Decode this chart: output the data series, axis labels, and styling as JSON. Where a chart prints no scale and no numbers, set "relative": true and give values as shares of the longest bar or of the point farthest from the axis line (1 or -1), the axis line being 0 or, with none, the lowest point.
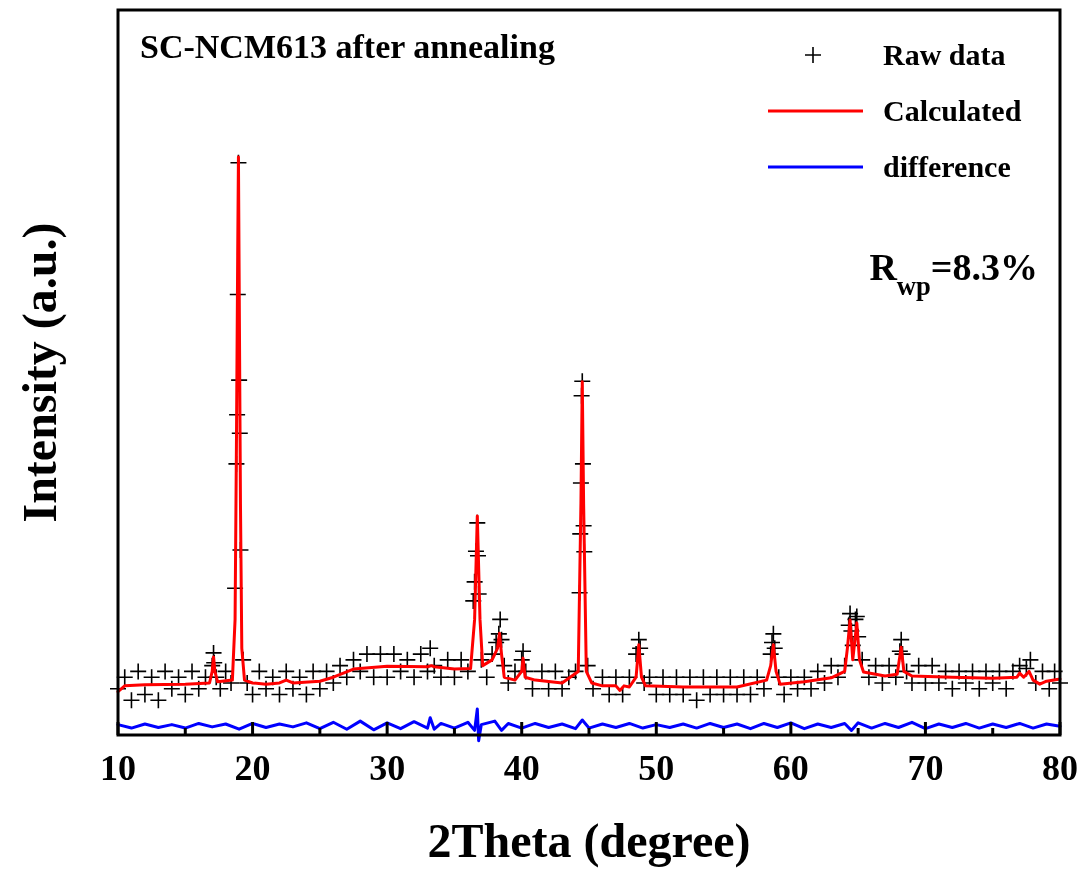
{
  "chart_data": {
    "type": "line",
    "title": "SC-NCM613 after annealing",
    "xlabel": "2Theta (degree)",
    "ylabel": "Intensity (a.u.)",
    "relative": true,
    "xlim": [
      10,
      80
    ],
    "xticks": [
      10,
      {
        "value": 15,
        "label": null
      },
      20,
      {
        "value": 25,
        "label": null
      },
      30,
      {
        "value": 35,
        "label": null
      },
      40,
      {
        "value": 45,
        "label": null
      },
      50,
      {
        "value": 55,
        "label": null
      },
      60,
      {
        "value": 65,
        "label": null
      },
      70,
      {
        "value": 75,
        "label": null
      },
      80
    ],
    "tick_labels": "x",
    "grid": false,
    "legend": "top right",
    "annotations": [
      "R$_{wp}$=8.3%"
    ],
    "series": [
      {
        "name": "Raw data",
        "type": "scatter",
        "marker": "cross",
        "color": "#000000",
        "x": [
          10,
          10.5,
          11,
          11.5,
          12,
          12.5,
          13,
          13.5,
          14,
          14.5,
          15,
          15.5,
          16,
          16.5,
          17.0,
          17.1,
          17.15,
          17.3,
          17.6,
          18.0,
          18.4,
          18.7,
          18.8,
          18.85,
          18.9,
          18.95,
          19.0,
          19.05,
          19.1,
          19.3,
          19.6,
          20,
          20.5,
          21,
          21.5,
          22,
          22.5,
          23,
          23.5,
          24,
          24.5,
          25,
          25.5,
          26,
          26.5,
          27,
          27.5,
          28,
          28.5,
          29,
          29.5,
          30,
          30.5,
          31,
          31.5,
          32,
          32.5,
          33,
          33.2,
          33.5,
          34,
          34.5,
          35,
          35.5,
          36,
          36.4,
          36.5,
          36.6,
          36.7,
          36.75,
          36.8,
          37.0,
          37.4,
          37.8,
          38.1,
          38.3,
          38.4,
          38.5,
          38.7,
          39,
          39.5,
          40.0,
          40.1,
          40.3,
          40.8,
          41.5,
          42,
          42.5,
          43,
          43.5,
          44,
          44.3,
          44.35,
          44.4,
          44.45,
          44.5,
          44.55,
          44.6,
          44.65,
          44.9,
          45.3,
          46,
          46.5,
          47,
          47.5,
          48,
          48.5,
          48.7,
          48.8,
          49.1,
          49.5,
          50,
          50.5,
          51,
          51.5,
          52,
          52.5,
          53,
          53.5,
          54,
          54.5,
          55,
          55.5,
          56,
          56.5,
          57,
          57.5,
          58,
          58.5,
          58.6,
          58.7,
          58.8,
          59.1,
          59.5,
          60,
          60.5,
          61,
          61.5,
          62,
          62.5,
          63,
          63.5,
          64,
          64.3,
          64.4,
          64.5,
          64.6,
          64.8,
          64.9,
          65.0,
          65.3,
          65.8,
          66.3,
          66.8,
          67.3,
          67.8,
          68.1,
          68.2,
          68.3,
          68.6,
          69,
          69.5,
          70,
          70.5,
          71,
          71.5,
          72,
          72.5,
          73,
          73.5,
          74,
          74.5,
          75,
          75.5,
          76,
          76.5,
          77,
          77.5,
          77.8,
          78.2,
          78.7,
          79.2,
          79.6,
          80
        ],
        "values": [
          0.08,
          0.1,
          0.06,
          0.11,
          0.07,
          0.1,
          0.06,
          0.11,
          0.08,
          0.1,
          0.07,
          0.11,
          0.08,
          0.1,
          0.12,
          0.142,
          0.125,
          0.1,
          0.08,
          0.11,
          0.09,
          0.254,
          0.469,
          0.554,
          0.762,
          0.99,
          0.614,
          0.522,
          0.32,
          0.13,
          0.09,
          0.07,
          0.11,
          0.08,
          0.1,
          0.07,
          0.11,
          0.08,
          0.1,
          0.07,
          0.11,
          0.08,
          0.11,
          0.09,
          0.12,
          0.1,
          0.13,
          0.11,
          0.14,
          0.1,
          0.14,
          0.1,
          0.14,
          0.11,
          0.13,
          0.1,
          0.14,
          0.11,
          0.15,
          0.12,
          0.1,
          0.13,
          0.1,
          0.13,
          0.11,
          0.232,
          0.265,
          0.318,
          0.367,
          0.31,
          0.244,
          0.13,
          0.1,
          0.14,
          0.16,
          0.175,
          0.2,
          0.165,
          0.12,
          0.09,
          0.11,
          0.13,
          0.145,
          0.11,
          0.08,
          0.11,
          0.08,
          0.11,
          0.08,
          0.1,
          0.11,
          0.246,
          0.348,
          0.436,
          0.587,
          0.612,
          0.469,
          0.362,
          0.317,
          0.12,
          0.08,
          0.1,
          0.07,
          0.1,
          0.07,
          0.1,
          0.14,
          0.165,
          0.15,
          0.09,
          0.1,
          0.07,
          0.1,
          0.07,
          0.1,
          0.07,
          0.1,
          0.06,
          0.1,
          0.07,
          0.1,
          0.07,
          0.1,
          0.07,
          0.1,
          0.07,
          0.1,
          0.08,
          0.14,
          0.16,
          0.175,
          0.15,
          0.1,
          0.07,
          0.1,
          0.08,
          0.1,
          0.08,
          0.11,
          0.09,
          0.12,
          0.1,
          0.12,
          0.19,
          0.21,
          0.18,
          0.155,
          0.2,
          0.205,
          0.17,
          0.13,
          0.1,
          0.12,
          0.09,
          0.12,
          0.1,
          0.145,
          0.165,
          0.14,
          0.11,
          0.09,
          0.12,
          0.09,
          0.12,
          0.09,
          0.11,
          0.08,
          0.11,
          0.09,
          0.11,
          0.08,
          0.11,
          0.09,
          0.11,
          0.08,
          0.11,
          0.12,
          0.115,
          0.13,
          0.09,
          0.11,
          0.08,
          0.11,
          0.09
        ]
      },
      {
        "name": "Calculated",
        "type": "line",
        "color": "#ff0000",
        "x": [
          10,
          10.5,
          12,
          15,
          16.8,
          17.0,
          17.1,
          17.2,
          17.4,
          18.5,
          18.7,
          18.8,
          18.9,
          18.95,
          19.0,
          19.1,
          19.2,
          19.4,
          20,
          21,
          22,
          22.5,
          23,
          25,
          26,
          27.5,
          30,
          33,
          33.3,
          33.5,
          35,
          36.2,
          36.5,
          36.7,
          36.9,
          37.1,
          37.8,
          38.0,
          38.2,
          38.35,
          38.5,
          38.7,
          39.5,
          40.0,
          40.1,
          40.25,
          41,
          43,
          44.2,
          44.4,
          44.5,
          44.6,
          44.8,
          45.2,
          46,
          47,
          47.3,
          47.6,
          48,
          48.5,
          48.7,
          48.9,
          49.2,
          52,
          56,
          58.2,
          58.5,
          58.7,
          58.9,
          59.2,
          61,
          63,
          64.0,
          64.2,
          64.4,
          64.6,
          64.9,
          65.1,
          65.4,
          67,
          67.9,
          68.2,
          68.4,
          69,
          72,
          75,
          76.8,
          77,
          77.3,
          77.7,
          78,
          78.5,
          79,
          80
        ],
        "values": [
          0.075,
          0.085,
          0.087,
          0.088,
          0.09,
          0.11,
          0.135,
          0.11,
          0.092,
          0.095,
          0.2,
          0.5,
          0.85,
          1,
          0.8,
          0.4,
          0.15,
          0.095,
          0.09,
          0.088,
          0.09,
          0.095,
          0.09,
          0.093,
          0.1,
          0.114,
          0.119,
          0.118,
          0.12,
          0.118,
          0.114,
          0.115,
          0.2,
          0.379,
          0.2,
          0.12,
          0.13,
          0.14,
          0.15,
          0.176,
          0.14,
          0.1,
          0.095,
          0.11,
          0.133,
          0.1,
          0.095,
          0.09,
          0.11,
          0.4,
          0.611,
          0.4,
          0.11,
          0.09,
          0.085,
          0.085,
          0.077,
          0.085,
          0.083,
          0.1,
          0.156,
          0.1,
          0.085,
          0.083,
          0.083,
          0.095,
          0.12,
          0.156,
          0.11,
          0.088,
          0.092,
          0.099,
          0.11,
          0.15,
          0.199,
          0.13,
          0.194,
          0.13,
          0.109,
          0.102,
          0.105,
          0.152,
          0.11,
          0.102,
          0.1,
          0.098,
          0.1,
          0.107,
          0.1,
          0.11,
          0.095,
          0.088,
          0.093,
          0.097
        ]
      },
      {
        "name": "difference",
        "type": "line",
        "color": "#0000ff",
        "x": [
          10,
          11,
          12,
          13,
          14,
          15,
          16,
          17,
          18,
          19,
          20,
          21,
          22,
          23,
          24,
          25,
          26,
          27,
          28,
          29,
          30,
          31,
          32,
          33,
          33.2,
          33.5,
          34,
          35,
          36,
          36.5,
          36.7,
          36.8,
          37,
          38,
          38.5,
          39,
          40,
          41,
          42,
          43,
          44,
          44.5,
          45,
          46,
          47,
          48,
          49,
          50,
          51,
          52,
          53,
          54,
          55,
          56,
          57,
          58,
          59,
          60,
          61,
          62,
          63,
          64,
          64.5,
          65,
          66,
          67,
          68,
          69,
          70,
          71,
          72,
          73,
          74,
          75,
          76,
          77,
          78,
          79,
          80
        ],
        "values": [
          0.018,
          0.012,
          0.019,
          0.013,
          0.018,
          0.012,
          0.02,
          0.014,
          0.019,
          0.01,
          0.02,
          0.013,
          0.019,
          0.014,
          0.021,
          0.011,
          0.022,
          0.01,
          0.024,
          0.009,
          0.021,
          0.011,
          0.023,
          0.012,
          0.03,
          0.01,
          0.02,
          0.012,
          0.022,
          0.008,
          0.045,
          -0.01,
          0.018,
          0.024,
          0.008,
          0.02,
          0.012,
          0.02,
          0.013,
          0.019,
          0.011,
          0.026,
          0.012,
          0.019,
          0.013,
          0.02,
          0.012,
          0.018,
          0.013,
          0.019,
          0.012,
          0.02,
          0.013,
          0.019,
          0.011,
          0.02,
          0.013,
          0.021,
          0.011,
          0.019,
          0.013,
          0.02,
          0.008,
          0.021,
          0.012,
          0.02,
          0.013,
          0.022,
          0.011,
          0.019,
          0.013,
          0.02,
          0.012,
          0.019,
          0.013,
          0.02,
          0.012,
          0.019,
          0.015
        ]
      }
    ]
  }
}
